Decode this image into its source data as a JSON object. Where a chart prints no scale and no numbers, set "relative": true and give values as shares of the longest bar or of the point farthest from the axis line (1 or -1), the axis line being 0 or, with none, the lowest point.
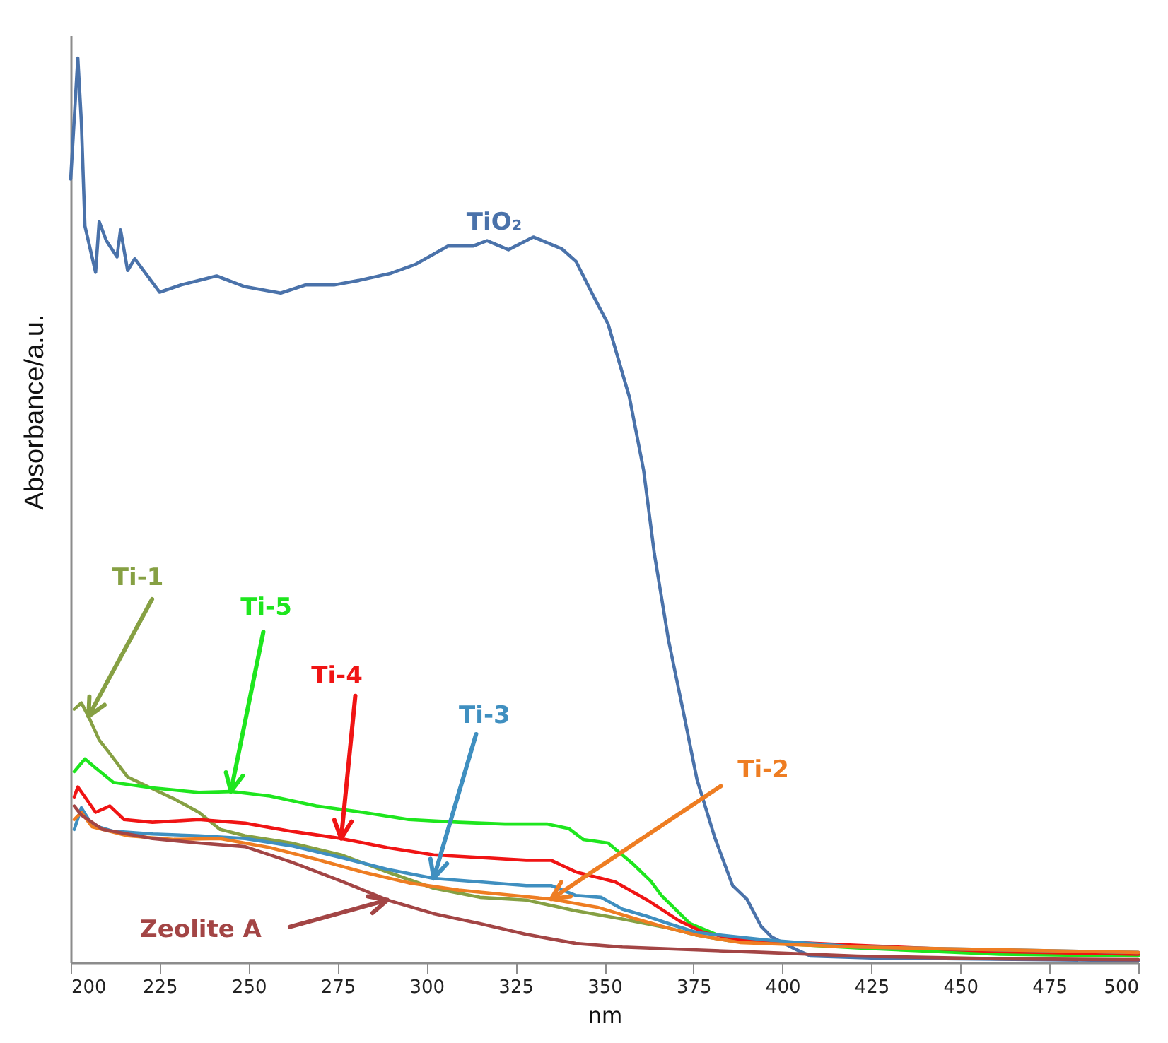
{
  "chart_data": {
    "type": "line",
    "relative": true,
    "xlabel": "nm",
    "ylabel": "Absorbance/a.u.",
    "xlim": [
      200,
      500
    ],
    "xticks": [
      200,
      225,
      250,
      275,
      300,
      325,
      350,
      375,
      400,
      425,
      450,
      475,
      500
    ],
    "series": [
      {
        "name": "TiO₂",
        "color": "#4a72aa",
        "x": [
          200,
          202,
          203,
          204,
          207,
          208,
          210,
          213,
          214,
          216,
          218,
          225,
          231,
          241,
          249,
          259,
          266,
          274,
          281,
          290,
          297,
          306,
          313,
          317,
          323,
          330,
          338,
          342,
          347,
          351,
          357,
          361,
          364,
          368,
          372,
          376,
          381,
          386,
          390,
          394,
          397,
          404,
          408,
          425,
          450,
          475,
          500
        ],
        "values": [
          0.866,
          1.0,
          0.929,
          0.814,
          0.763,
          0.819,
          0.798,
          0.78,
          0.81,
          0.765,
          0.778,
          0.741,
          0.749,
          0.759,
          0.747,
          0.74,
          0.749,
          0.749,
          0.754,
          0.762,
          0.772,
          0.792,
          0.792,
          0.798,
          0.788,
          0.802,
          0.789,
          0.775,
          0.736,
          0.706,
          0.625,
          0.544,
          0.452,
          0.356,
          0.28,
          0.202,
          0.138,
          0.085,
          0.07,
          0.04,
          0.028,
          0.014,
          0.007,
          0.005,
          0.004,
          0.003,
          0.002
        ]
      },
      {
        "name": "Ti-1",
        "color": "#86a043",
        "x": [
          201,
          203,
          205,
          208,
          211,
          216,
          223,
          229,
          236,
          242,
          249,
          262,
          276,
          289,
          302,
          315,
          328,
          342,
          355,
          368,
          376,
          385,
          408,
          448,
          500
        ],
        "values": [
          0.28,
          0.287,
          0.272,
          0.246,
          0.231,
          0.205,
          0.192,
          0.181,
          0.166,
          0.147,
          0.14,
          0.132,
          0.119,
          0.1,
          0.082,
          0.072,
          0.069,
          0.057,
          0.048,
          0.038,
          0.03,
          0.024,
          0.02,
          0.013,
          0.009
        ]
      },
      {
        "name": "Ti-5",
        "color": "#1ee61e",
        "x": [
          201,
          204,
          207,
          212,
          223,
          236,
          245,
          256,
          269,
          282,
          295,
          309,
          322,
          334,
          340,
          344,
          351,
          358,
          363,
          366,
          374,
          382,
          395,
          421,
          461,
          500
        ],
        "values": [
          0.211,
          0.225,
          0.215,
          0.199,
          0.193,
          0.188,
          0.189,
          0.184,
          0.173,
          0.166,
          0.158,
          0.155,
          0.153,
          0.153,
          0.148,
          0.136,
          0.132,
          0.109,
          0.09,
          0.074,
          0.043,
          0.03,
          0.022,
          0.016,
          0.009,
          0.007
        ]
      },
      {
        "name": "Ti-4",
        "color": "#f01414",
        "x": [
          201,
          202,
          204,
          207,
          211,
          215,
          223,
          236,
          249,
          262,
          276,
          289,
          302,
          315,
          328,
          335,
          342,
          353,
          362,
          371,
          378,
          388,
          421,
          461,
          500
        ],
        "values": [
          0.183,
          0.194,
          0.183,
          0.166,
          0.173,
          0.158,
          0.155,
          0.158,
          0.154,
          0.145,
          0.137,
          0.127,
          0.119,
          0.116,
          0.113,
          0.113,
          0.1,
          0.089,
          0.069,
          0.046,
          0.033,
          0.025,
          0.019,
          0.012,
          0.009
        ]
      },
      {
        "name": "Ti-3",
        "color": "#3f8fc0",
        "x": [
          201,
          203,
          206,
          212,
          223,
          236,
          249,
          262,
          276,
          289,
          302,
          315,
          328,
          335,
          342,
          349,
          355,
          362,
          368,
          376,
          395,
          421,
          461,
          500
        ],
        "values": [
          0.147,
          0.171,
          0.152,
          0.145,
          0.142,
          0.14,
          0.137,
          0.129,
          0.116,
          0.103,
          0.093,
          0.089,
          0.085,
          0.085,
          0.074,
          0.072,
          0.059,
          0.051,
          0.043,
          0.033,
          0.025,
          0.017,
          0.014,
          0.011
        ]
      },
      {
        "name": "Ti-2",
        "color": "#ee7d22",
        "x": [
          201,
          203,
          206,
          216,
          229,
          242,
          256,
          269,
          282,
          295,
          309,
          322,
          335,
          348,
          359,
          368,
          376,
          388,
          421,
          461,
          500
        ],
        "values": [
          0.158,
          0.166,
          0.15,
          0.14,
          0.136,
          0.137,
          0.127,
          0.114,
          0.1,
          0.088,
          0.08,
          0.075,
          0.07,
          0.061,
          0.048,
          0.038,
          0.03,
          0.022,
          0.017,
          0.014,
          0.011
        ]
      },
      {
        "name": "Zeolite A",
        "color": "#a34545",
        "x": [
          201,
          203,
          209,
          223,
          236,
          249,
          262,
          276,
          289,
          302,
          315,
          328,
          342,
          355,
          368,
          395,
          421,
          461,
          500
        ],
        "values": [
          0.173,
          0.163,
          0.147,
          0.137,
          0.132,
          0.128,
          0.111,
          0.09,
          0.069,
          0.054,
          0.043,
          0.031,
          0.021,
          0.017,
          0.015,
          0.011,
          0.007,
          0.004,
          0.003
        ]
      }
    ]
  }
}
